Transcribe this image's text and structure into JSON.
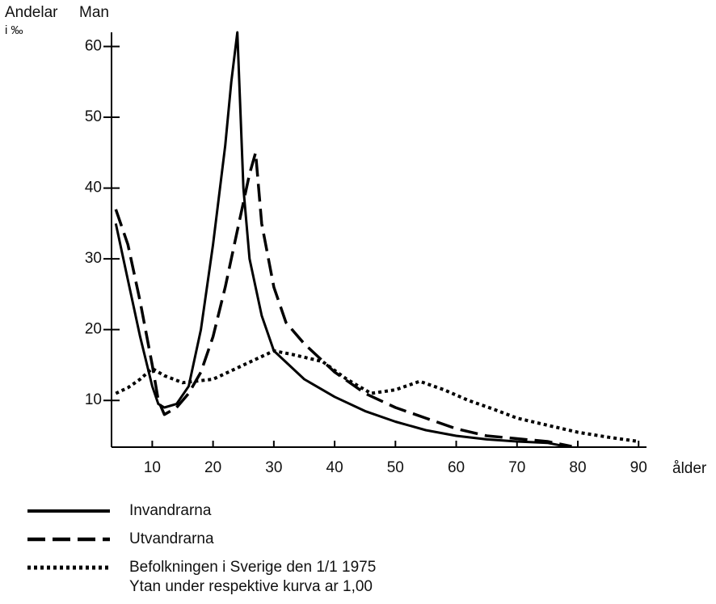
{
  "chart_data": {
    "type": "line",
    "title": "Man",
    "y_label": [
      "Andelar",
      "i ‰"
    ],
    "x_label": "ålder",
    "xlim": [
      3.3,
      91.3
    ],
    "ylim": [
      3.4,
      62
    ],
    "xticks": [
      10,
      20,
      30,
      40,
      50,
      60,
      70,
      80,
      90
    ],
    "yticks": [
      10,
      20,
      30,
      40,
      50,
      60
    ],
    "series": [
      {
        "name": "Invandrarna",
        "color": "#000000",
        "style": "solid",
        "x": [
          4,
          6,
          8,
          10,
          11,
          12,
          14,
          16,
          18,
          20,
          22,
          23,
          24,
          25,
          26,
          28,
          30,
          35,
          40,
          45,
          50,
          55,
          60,
          65,
          70,
          75,
          78
        ],
        "values": [
          35,
          27,
          19,
          12,
          9.5,
          9,
          9.5,
          12,
          20,
          32,
          46,
          55,
          62,
          40,
          30,
          22,
          17,
          13,
          10.5,
          8.5,
          7,
          5.8,
          5,
          4.5,
          4.2,
          4,
          3.5
        ]
      },
      {
        "name": "Utvandrarna",
        "color": "#000000",
        "style": "dashed",
        "x": [
          4,
          6,
          8,
          10,
          11,
          12,
          14,
          16,
          18,
          20,
          22,
          24,
          26,
          27,
          28,
          30,
          32,
          35,
          40,
          45,
          50,
          55,
          60,
          65,
          70,
          75,
          79
        ],
        "values": [
          37,
          32,
          24,
          15,
          10,
          8,
          9,
          11,
          14,
          19,
          26,
          34,
          42,
          45,
          35,
          26,
          21,
          18,
          14,
          11,
          9,
          7.5,
          6,
          5,
          4.6,
          4.2,
          3.5
        ]
      },
      {
        "name": "Befolkningen i Sverige den 1/1 1975",
        "color": "#000000",
        "style": "dotted",
        "x": [
          4,
          6,
          8,
          10,
          12,
          15,
          20,
          25,
          30,
          33,
          38,
          42,
          46,
          50,
          54,
          58,
          62,
          66,
          70,
          75,
          80,
          85,
          90
        ],
        "values": [
          11,
          11.8,
          13,
          14.5,
          13.5,
          12.5,
          13,
          15,
          17,
          16.5,
          15.5,
          13,
          11,
          11.5,
          12.7,
          11.5,
          10,
          8.8,
          7.5,
          6.5,
          5.5,
          4.8,
          4.2
        ]
      }
    ],
    "note": "Ytan under respektive kurva ar 1,00"
  }
}
